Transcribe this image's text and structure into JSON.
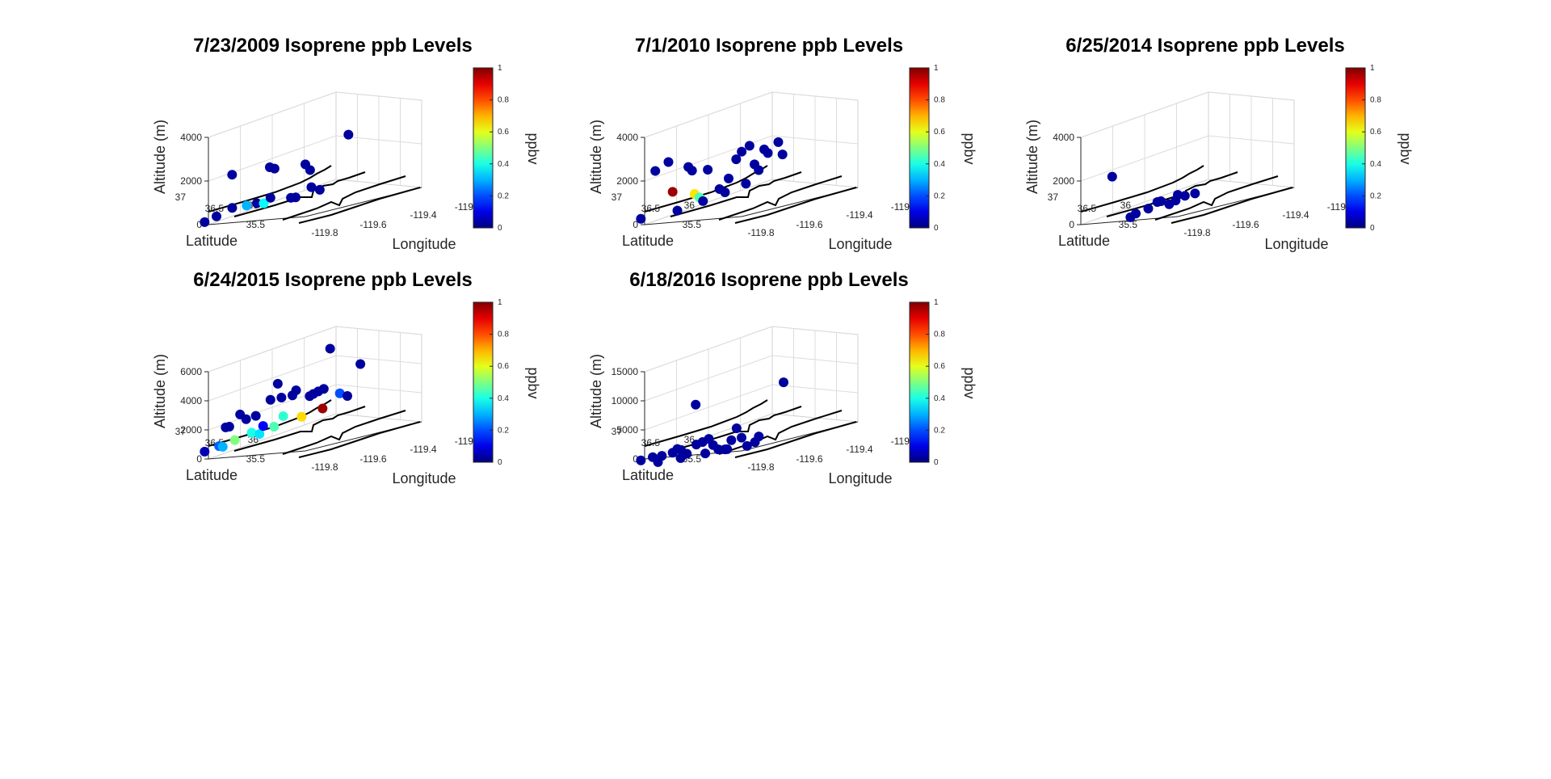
{
  "chart_data": [
    {
      "type": "scatter",
      "title": "7/23/2009 Isoprene ppb Levels",
      "xlabel": "Longitude",
      "ylabel": "Latitude",
      "zlabel": "Altitude (m)",
      "colorbar_label": "ppbv",
      "colormap": "jet",
      "clim": [
        0,
        1
      ],
      "colorbar_ticks": [
        "0",
        "0.2",
        "0.4",
        "0.6",
        "0.8",
        "1"
      ],
      "xticks": [
        "-119.8",
        "-119.6",
        "-119.4",
        "-119."
      ],
      "yticks": [
        "35.5",
        "36",
        "36.5",
        "37"
      ],
      "zticks": [
        "0",
        "2000",
        "4000"
      ],
      "zlim": [
        0,
        4000
      ],
      "grid": true,
      "points": [
        {
          "x": -119.95,
          "y": 37.05,
          "z": 180,
          "c": 0.03
        },
        {
          "x": -119.9,
          "y": 36.95,
          "z": 350,
          "c": 0.03
        },
        {
          "x": -119.82,
          "y": 36.85,
          "z": 600,
          "c": 0.03
        },
        {
          "x": -119.75,
          "y": 36.75,
          "z": 580,
          "c": 0.3
        },
        {
          "x": -119.7,
          "y": 36.68,
          "z": 600,
          "c": 0.03
        },
        {
          "x": -119.68,
          "y": 36.6,
          "z": 550,
          "c": 0.38
        },
        {
          "x": -119.62,
          "y": 36.62,
          "z": 720,
          "c": 0.03
        },
        {
          "x": -119.52,
          "y": 36.48,
          "z": 540,
          "c": 0.03
        },
        {
          "x": -119.5,
          "y": 36.44,
          "z": 520,
          "c": 0.03
        },
        {
          "x": -119.42,
          "y": 36.34,
          "z": 850,
          "c": 0.03
        },
        {
          "x": -119.38,
          "y": 36.28,
          "z": 660,
          "c": 0.03
        },
        {
          "x": -119.8,
          "y": 36.9,
          "z": 2100,
          "c": 0.03
        },
        {
          "x": -119.6,
          "y": 36.68,
          "z": 2100,
          "c": 0.03
        },
        {
          "x": -119.58,
          "y": 36.64,
          "z": 2000,
          "c": 0.03
        },
        {
          "x": -119.4,
          "y": 36.5,
          "z": 1900,
          "c": 0.03
        },
        {
          "x": -119.38,
          "y": 36.46,
          "z": 1600,
          "c": 0.03
        },
        {
          "x": -119.15,
          "y": 36.3,
          "z": 2850,
          "c": 0.03
        }
      ]
    },
    {
      "type": "scatter",
      "title": "7/1/2010 Isoprene ppb Levels",
      "xlabel": "Longitude",
      "ylabel": "Latitude",
      "zlabel": "Altitude (m)",
      "colorbar_label": "ppbv",
      "colormap": "jet",
      "clim": [
        0,
        1
      ],
      "colorbar_ticks": [
        "0",
        "0.2",
        "0.4",
        "0.6",
        "0.8",
        "1"
      ],
      "xticks": [
        "-119.8",
        "-119.6",
        "-119.4",
        "-119."
      ],
      "yticks": [
        "35.5",
        "36",
        "36.5",
        "37"
      ],
      "zticks": [
        "0",
        "2000",
        "4000"
      ],
      "zlim": [
        0,
        4000
      ],
      "grid": true,
      "points": [
        {
          "x": -119.95,
          "y": 37.05,
          "z": 330,
          "c": 0.03
        },
        {
          "x": -119.88,
          "y": 36.95,
          "z": 2400,
          "c": 0.03
        },
        {
          "x": -119.82,
          "y": 36.85,
          "z": 2700,
          "c": 0.03
        },
        {
          "x": -119.8,
          "y": 36.82,
          "z": 1300,
          "c": 0.97
        },
        {
          "x": -119.78,
          "y": 36.78,
          "z": 400,
          "c": 0.03
        },
        {
          "x": -119.72,
          "y": 36.72,
          "z": 2300,
          "c": 0.03
        },
        {
          "x": -119.7,
          "y": 36.7,
          "z": 2100,
          "c": 0.03
        },
        {
          "x": -119.68,
          "y": 36.7,
          "z": 1000,
          "c": 0.65
        },
        {
          "x": -119.66,
          "y": 36.66,
          "z": 800,
          "c": 0.45
        },
        {
          "x": -119.64,
          "y": 36.64,
          "z": 600,
          "c": 0.03
        },
        {
          "x": -119.62,
          "y": 36.6,
          "z": 2000,
          "c": 0.03
        },
        {
          "x": -119.55,
          "y": 36.55,
          "z": 1000,
          "c": 0.03
        },
        {
          "x": -119.52,
          "y": 36.52,
          "z": 800,
          "c": 0.03
        },
        {
          "x": -119.5,
          "y": 36.5,
          "z": 1400,
          "c": 0.03
        },
        {
          "x": -119.45,
          "y": 36.48,
          "z": 2200,
          "c": 0.03
        },
        {
          "x": -119.42,
          "y": 36.45,
          "z": 2500,
          "c": 0.03
        },
        {
          "x": -119.4,
          "y": 36.42,
          "z": 1000,
          "c": 0.03
        },
        {
          "x": -119.38,
          "y": 36.4,
          "z": 2700,
          "c": 0.03
        },
        {
          "x": -119.35,
          "y": 36.38,
          "z": 1800,
          "c": 0.03
        },
        {
          "x": -119.33,
          "y": 36.35,
          "z": 1500,
          "c": 0.03
        },
        {
          "x": -119.3,
          "y": 36.32,
          "z": 2400,
          "c": 0.03
        },
        {
          "x": -119.28,
          "y": 36.3,
          "z": 2200,
          "c": 0.03
        },
        {
          "x": -119.22,
          "y": 36.25,
          "z": 2600,
          "c": 0.03
        },
        {
          "x": -119.2,
          "y": 36.22,
          "z": 2000,
          "c": 0.03
        }
      ]
    },
    {
      "type": "scatter",
      "title": "6/25/2014 Isoprene ppb Levels",
      "xlabel": "Longitude",
      "ylabel": "Latitude",
      "zlabel": "Altitude (m)",
      "colorbar_label": "ppbv",
      "colormap": "jet",
      "clim": [
        0,
        1
      ],
      "colorbar_ticks": [
        "0",
        "0.2",
        "0.4",
        "0.6",
        "0.8",
        "1"
      ],
      "xticks": [
        "-119.8",
        "-119.6",
        "-119.4",
        "-119."
      ],
      "yticks": [
        "35.5",
        "36",
        "36.5",
        "37"
      ],
      "zticks": [
        "0",
        "2000",
        "4000"
      ],
      "zlim": [
        0,
        4000
      ],
      "grid": true,
      "points": [
        {
          "x": -119.72,
          "y": 36.95,
          "z": 1900,
          "c": 0.03
        },
        {
          "x": -119.85,
          "y": 36.3,
          "z": 100,
          "c": 0.03
        },
        {
          "x": -119.8,
          "y": 36.32,
          "z": 200,
          "c": 0.03
        },
        {
          "x": -119.72,
          "y": 36.28,
          "z": 300,
          "c": 0.03
        },
        {
          "x": -119.6,
          "y": 36.4,
          "z": 450,
          "c": 0.03
        },
        {
          "x": -119.58,
          "y": 36.38,
          "z": 450,
          "c": 0.03
        },
        {
          "x": -119.55,
          "y": 36.3,
          "z": 250,
          "c": 0.03
        },
        {
          "x": -119.5,
          "y": 36.3,
          "z": 350,
          "c": 0.03
        },
        {
          "x": -119.45,
          "y": 36.38,
          "z": 550,
          "c": 0.03
        },
        {
          "x": -119.42,
          "y": 36.32,
          "z": 450,
          "c": 0.03
        },
        {
          "x": -119.35,
          "y": 36.3,
          "z": 450,
          "c": 0.03
        }
      ]
    },
    {
      "type": "scatter",
      "title": "6/24/2015 Isoprene ppb Levels",
      "xlabel": "Longitude",
      "ylabel": "Latitude",
      "zlabel": "Altitude (m)",
      "colorbar_label": "ppbv",
      "colormap": "jet",
      "clim": [
        0,
        1
      ],
      "colorbar_ticks": [
        "0",
        "0.2",
        "0.4",
        "0.6",
        "0.8",
        "1"
      ],
      "xticks": [
        "-119.8",
        "-119.6",
        "-119.4",
        "-119."
      ],
      "yticks": [
        "35.5",
        "36",
        "36.5",
        "37"
      ],
      "zticks": [
        "0",
        "2000",
        "4000",
        "6000"
      ],
      "zlim": [
        0,
        6000
      ],
      "grid": true,
      "points": [
        {
          "x": -119.95,
          "y": 37.05,
          "z": 600,
          "c": 0.05
        },
        {
          "x": -119.88,
          "y": 36.95,
          "z": 800,
          "c": 0.22
        },
        {
          "x": -119.86,
          "y": 36.93,
          "z": 700,
          "c": 0.3
        },
        {
          "x": -119.85,
          "y": 36.9,
          "z": 2000,
          "c": 0.03
        },
        {
          "x": -119.83,
          "y": 36.88,
          "z": 2000,
          "c": 0.03
        },
        {
          "x": -119.8,
          "y": 36.85,
          "z": 1000,
          "c": 0.5
        },
        {
          "x": -119.78,
          "y": 36.8,
          "z": 2700,
          "c": 0.03
        },
        {
          "x": -119.75,
          "y": 36.76,
          "z": 2300,
          "c": 0.03
        },
        {
          "x": -119.72,
          "y": 36.73,
          "z": 1300,
          "c": 0.4
        },
        {
          "x": -119.7,
          "y": 36.7,
          "z": 2400,
          "c": 0.03
        },
        {
          "x": -119.68,
          "y": 36.68,
          "z": 1100,
          "c": 0.35
        },
        {
          "x": -119.66,
          "y": 36.66,
          "z": 1600,
          "c": 0.12
        },
        {
          "x": -119.62,
          "y": 36.62,
          "z": 3300,
          "c": 0.03
        },
        {
          "x": -119.6,
          "y": 36.6,
          "z": 1400,
          "c": 0.45
        },
        {
          "x": -119.58,
          "y": 36.58,
          "z": 4300,
          "c": 0.03
        },
        {
          "x": -119.56,
          "y": 36.56,
          "z": 3300,
          "c": 0.03
        },
        {
          "x": -119.55,
          "y": 36.55,
          "z": 2000,
          "c": 0.42
        },
        {
          "x": -119.5,
          "y": 36.5,
          "z": 3300,
          "c": 0.03
        },
        {
          "x": -119.48,
          "y": 36.48,
          "z": 3600,
          "c": 0.03
        },
        {
          "x": -119.45,
          "y": 36.45,
          "z": 1700,
          "c": 0.66
        },
        {
          "x": -119.4,
          "y": 36.42,
          "z": 3000,
          "c": 0.03
        },
        {
          "x": -119.38,
          "y": 36.4,
          "z": 3100,
          "c": 0.03
        },
        {
          "x": -119.35,
          "y": 36.38,
          "z": 3200,
          "c": 0.03
        },
        {
          "x": -119.32,
          "y": 36.35,
          "z": 3300,
          "c": 0.03
        },
        {
          "x": -119.35,
          "y": 36.3,
          "z": 2000,
          "c": 0.97
        },
        {
          "x": -119.3,
          "y": 36.28,
          "z": 6000,
          "c": 0.03
        },
        {
          "x": -119.25,
          "y": 36.22,
          "z": 2800,
          "c": 0.2
        },
        {
          "x": -119.2,
          "y": 36.2,
          "z": 2500,
          "c": 0.03
        },
        {
          "x": -119.12,
          "y": 36.15,
          "z": 4500,
          "c": 0.03
        }
      ]
    },
    {
      "type": "scatter",
      "title": "6/18/2016 Isoprene ppb Levels",
      "xlabel": "Longitude",
      "ylabel": "Latitude",
      "zlabel": "Altitude (m)",
      "colorbar_label": "ppbv",
      "colormap": "jet",
      "clim": [
        0,
        1
      ],
      "colorbar_ticks": [
        "0",
        "0.2",
        "0.4",
        "0.6",
        "0.8",
        "1"
      ],
      "xticks": [
        "-119.8",
        "-119.6",
        "-119.4",
        "-119."
      ],
      "yticks": [
        "35.5",
        "36",
        "36.5",
        "37"
      ],
      "zticks": [
        "0",
        "5000",
        "10000",
        "15000"
      ],
      "zlim": [
        0,
        15000
      ],
      "grid": true,
      "points": [
        {
          "x": -119.95,
          "y": 37.05,
          "z": 0,
          "c": 0.03
        },
        {
          "x": -119.9,
          "y": 36.95,
          "z": 200,
          "c": 0.03
        },
        {
          "x": -119.88,
          "y": 36.9,
          "z": -800,
          "c": 0.03
        },
        {
          "x": -119.85,
          "y": 36.9,
          "z": 100,
          "c": 0.03
        },
        {
          "x": -119.8,
          "y": 36.82,
          "z": 300,
          "c": 0.03
        },
        {
          "x": -119.78,
          "y": 36.78,
          "z": 800,
          "c": 0.03
        },
        {
          "x": -119.78,
          "y": 36.72,
          "z": -800,
          "c": 0.03
        },
        {
          "x": -119.76,
          "y": 36.76,
          "z": 500,
          "c": 0.03
        },
        {
          "x": -119.74,
          "y": 36.7,
          "z": -300,
          "c": 0.03
        },
        {
          "x": -119.68,
          "y": 36.68,
          "z": 7800,
          "c": 0.03
        },
        {
          "x": -119.7,
          "y": 36.62,
          "z": 1000,
          "c": 0.03
        },
        {
          "x": -119.66,
          "y": 36.6,
          "z": 1200,
          "c": 0.03
        },
        {
          "x": -119.66,
          "y": 36.55,
          "z": -800,
          "c": 0.03
        },
        {
          "x": -119.62,
          "y": 36.58,
          "z": 1500,
          "c": 0.03
        },
        {
          "x": -119.6,
          "y": 36.55,
          "z": 300,
          "c": 0.03
        },
        {
          "x": -119.58,
          "y": 36.5,
          "z": -600,
          "c": 0.03
        },
        {
          "x": -119.55,
          "y": 36.45,
          "z": -800,
          "c": 0.03
        },
        {
          "x": -119.52,
          "y": 36.48,
          "z": -900,
          "c": 0.03
        },
        {
          "x": -119.5,
          "y": 36.45,
          "z": 500,
          "c": 0.03
        },
        {
          "x": -119.48,
          "y": 36.4,
          "z": 2400,
          "c": 0.03
        },
        {
          "x": -119.45,
          "y": 36.38,
          "z": 600,
          "c": 0.03
        },
        {
          "x": -119.42,
          "y": 36.35,
          "z": -1000,
          "c": 0.03
        },
        {
          "x": -119.38,
          "y": 36.3,
          "z": -600,
          "c": 0.03
        },
        {
          "x": -119.35,
          "y": 36.3,
          "z": 200,
          "c": 0.03
        },
        {
          "x": -119.2,
          "y": 36.2,
          "z": 8600,
          "c": 0.03
        }
      ]
    }
  ]
}
